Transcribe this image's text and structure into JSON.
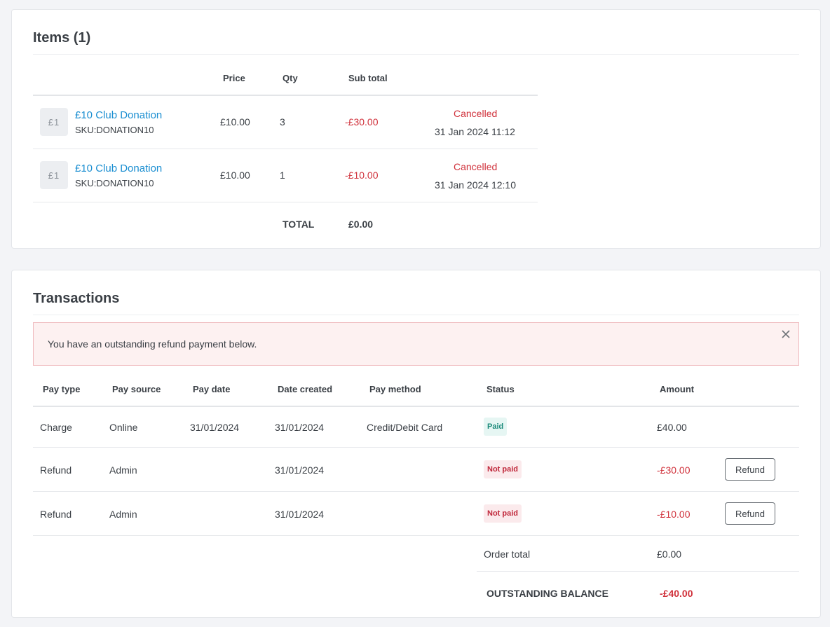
{
  "items": {
    "title": "Items (1)",
    "columns": {
      "price": "Price",
      "qty": "Qty",
      "subtotal": "Sub total"
    },
    "rows": [
      {
        "thumb": "£1",
        "name": "£10 Club Donation",
        "sku": "SKU:DONATION10",
        "price": "£10.00",
        "qty": "3",
        "subtotal": "-£30.00",
        "status": "Cancelled",
        "date": "31 Jan 2024 11:12"
      },
      {
        "thumb": "£1",
        "name": "£10 Club Donation",
        "sku": "SKU:DONATION10",
        "price": "£10.00",
        "qty": "1",
        "subtotal": "-£10.00",
        "status": "Cancelled",
        "date": "31 Jan 2024 12:10"
      }
    ],
    "total_label": "TOTAL",
    "total_value": "£0.00"
  },
  "transactions": {
    "title": "Transactions",
    "alert": "You have an outstanding refund payment below.",
    "columns": {
      "pay_type": "Pay type",
      "pay_source": "Pay source",
      "pay_date": "Pay date",
      "date_created": "Date created",
      "pay_method": "Pay method",
      "status": "Status",
      "amount": "Amount"
    },
    "rows": [
      {
        "pay_type": "Charge",
        "pay_source": "Online",
        "pay_date": "31/01/2024",
        "date_created": "31/01/2024",
        "pay_method": "Credit/Debit Card",
        "status": "Paid",
        "amount": "£40.00"
      },
      {
        "pay_type": "Refund",
        "pay_source": "Admin",
        "pay_date": "",
        "date_created": "31/01/2024",
        "pay_method": "",
        "status": "Not paid",
        "amount": "-£30.00",
        "action": "Refund"
      },
      {
        "pay_type": "Refund",
        "pay_source": "Admin",
        "pay_date": "",
        "date_created": "31/01/2024",
        "pay_method": "",
        "status": "Not paid",
        "amount": "-£10.00",
        "action": "Refund"
      }
    ],
    "order_total_label": "Order total",
    "order_total_value": "£0.00",
    "balance_label": "OUTSTANDING BALANCE",
    "balance_value": "-£40.00"
  },
  "colors": {
    "link": "#1a8ed1",
    "negative": "#d0313b",
    "paid": "#1b8a7a",
    "alert_bg": "#fdf1f1",
    "alert_border": "#efb9bd"
  },
  "icons": {
    "alert_close": "close-icon"
  }
}
